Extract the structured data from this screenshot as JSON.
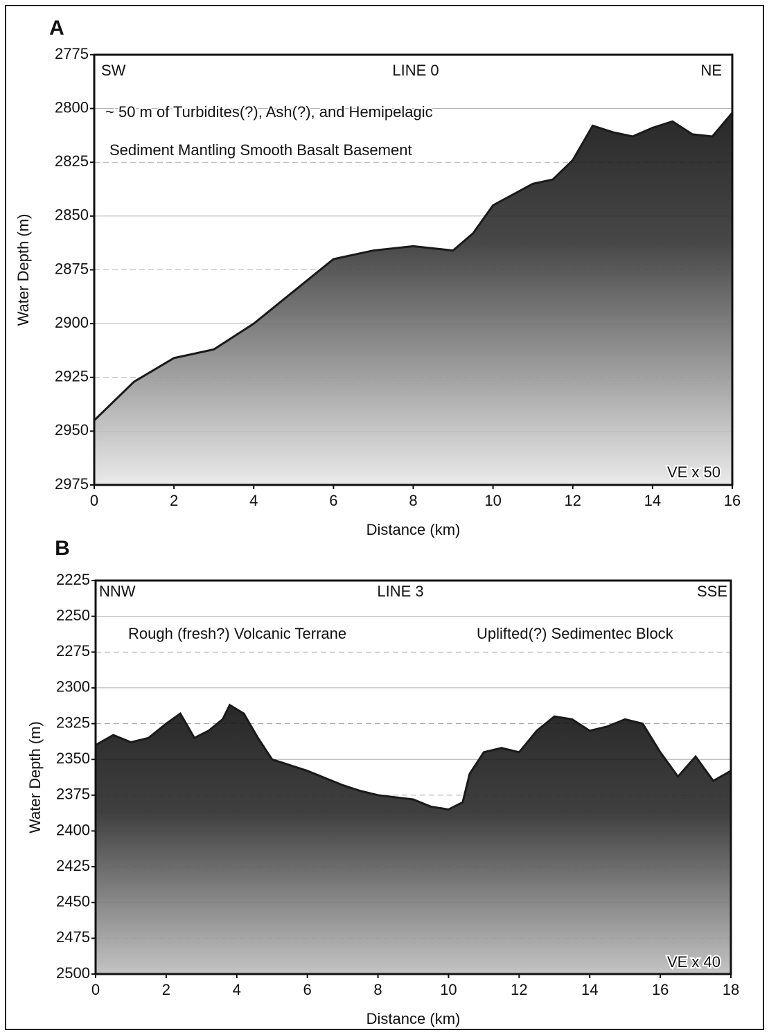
{
  "chart_data": [
    {
      "panel": "A",
      "type": "area",
      "xlabel": "Distance (km)",
      "ylabel": "Water Depth (m)",
      "annotations": [
        "SW",
        "LINE 0",
        "NE",
        "~ 50 m of Turbidites(?), Ash(?), and Hemipelagic",
        "Sediment Mantling Smooth Basalt Basement",
        "VE x 50"
      ],
      "x": [
        0,
        1,
        2,
        3,
        4,
        5,
        6,
        7,
        8,
        9,
        9.5,
        10,
        11,
        11.5,
        12,
        12.5,
        13,
        13.5,
        14,
        14.5,
        15,
        15.5,
        16
      ],
      "values": [
        2945,
        2927,
        2916,
        2912,
        2900,
        2885,
        2870,
        2866,
        2864,
        2866,
        2858,
        2845,
        2835,
        2833,
        2824,
        2808,
        2811,
        2813,
        2809,
        2806,
        2812,
        2813,
        2802
      ],
      "color": "#1a1a1a",
      "xlim": [
        0,
        16
      ],
      "xticks": [
        0,
        2,
        4,
        6,
        8,
        10,
        12,
        14,
        16
      ],
      "ylim": [
        2775,
        2975
      ],
      "yticks": [
        2775,
        2800,
        2825,
        2850,
        2875,
        2900,
        2925,
        2950,
        2975
      ],
      "y_inverted": true,
      "grid": true
    },
    {
      "panel": "B",
      "type": "area",
      "xlabel": "Distance (km)",
      "ylabel": "Water Depth (m)",
      "annotations": [
        "NNW",
        "LINE 3",
        "SSE",
        "Rough (fresh?) Volcanic Terrane",
        "Uplifted(?) Sedimentec Block",
        "VE x 40"
      ],
      "x": [
        0,
        0.5,
        1,
        1.5,
        2,
        2.4,
        2.8,
        3.2,
        3.6,
        3.8,
        4.2,
        4.6,
        5,
        6,
        7,
        7.5,
        8,
        9,
        9.5,
        10,
        10.4,
        10.6,
        11,
        11.5,
        12,
        12.5,
        13,
        13.5,
        14,
        14.5,
        15,
        15.5,
        16,
        16.5,
        17,
        17.5,
        18
      ],
      "values": [
        2340,
        2333,
        2338,
        2335,
        2325,
        2318,
        2335,
        2330,
        2322,
        2312,
        2318,
        2335,
        2350,
        2358,
        2368,
        2372,
        2375,
        2378,
        2383,
        2385,
        2380,
        2360,
        2345,
        2342,
        2345,
        2330,
        2320,
        2322,
        2330,
        2327,
        2322,
        2325,
        2345,
        2362,
        2348,
        2365,
        2358
      ],
      "color": "#1a1a1a",
      "xlim": [
        0,
        18
      ],
      "xticks": [
        0,
        2,
        4,
        6,
        8,
        10,
        12,
        14,
        16,
        18
      ],
      "ylim": [
        2225,
        2500
      ],
      "yticks": [
        2225,
        2250,
        2275,
        2300,
        2325,
        2350,
        2375,
        2400,
        2425,
        2450,
        2475,
        2500
      ],
      "y_inverted": true,
      "grid": true
    }
  ]
}
